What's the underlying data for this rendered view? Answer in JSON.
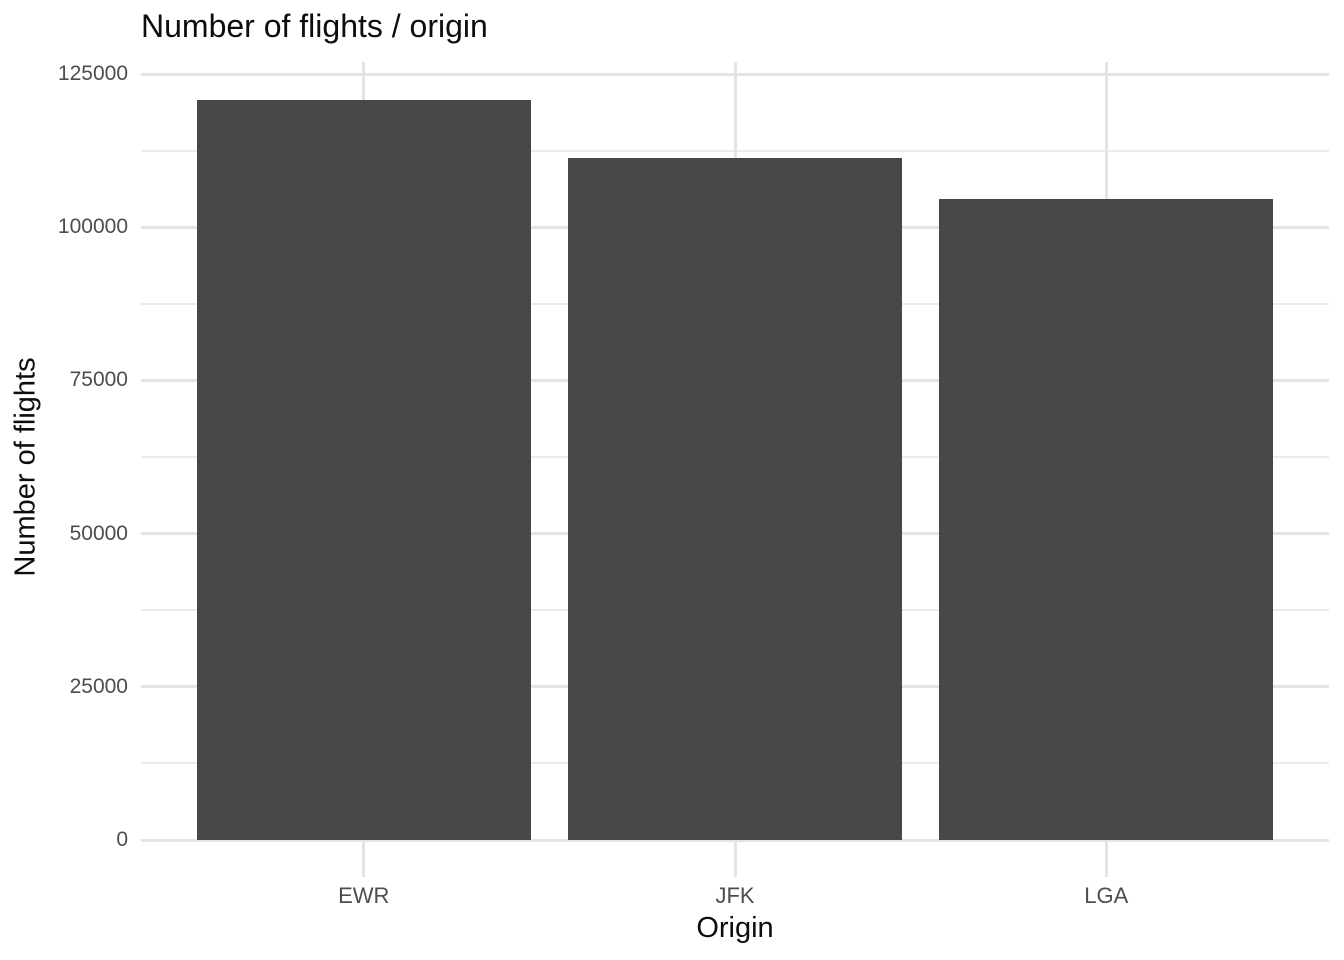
{
  "chart_data": {
    "type": "bar",
    "title": "Number of flights / origin",
    "xlabel": "Origin",
    "ylabel": "Number of flights",
    "categories": [
      "EWR",
      "JFK",
      "LGA"
    ],
    "values": [
      120835,
      111279,
      104662
    ],
    "ylim": [
      0,
      125000
    ],
    "yticks": [
      0,
      25000,
      50000,
      75000,
      100000,
      125000
    ],
    "ytick_labels": [
      "0",
      "25000",
      "50000",
      "75000",
      "100000",
      "125000"
    ],
    "yticks_minor": [
      12500,
      37500,
      62500,
      87500,
      112500
    ],
    "grid": "major+minor horizontal, major vertical at category centers",
    "legend": "none",
    "theme": "minimal",
    "colors": {
      "bar_fill": "#474747",
      "grid_major": "#e4e4e4",
      "grid_minor": "#ebebeb",
      "tick_label": "#4d4d4d",
      "text": "#0d0d0d",
      "background": "#ffffff"
    }
  }
}
